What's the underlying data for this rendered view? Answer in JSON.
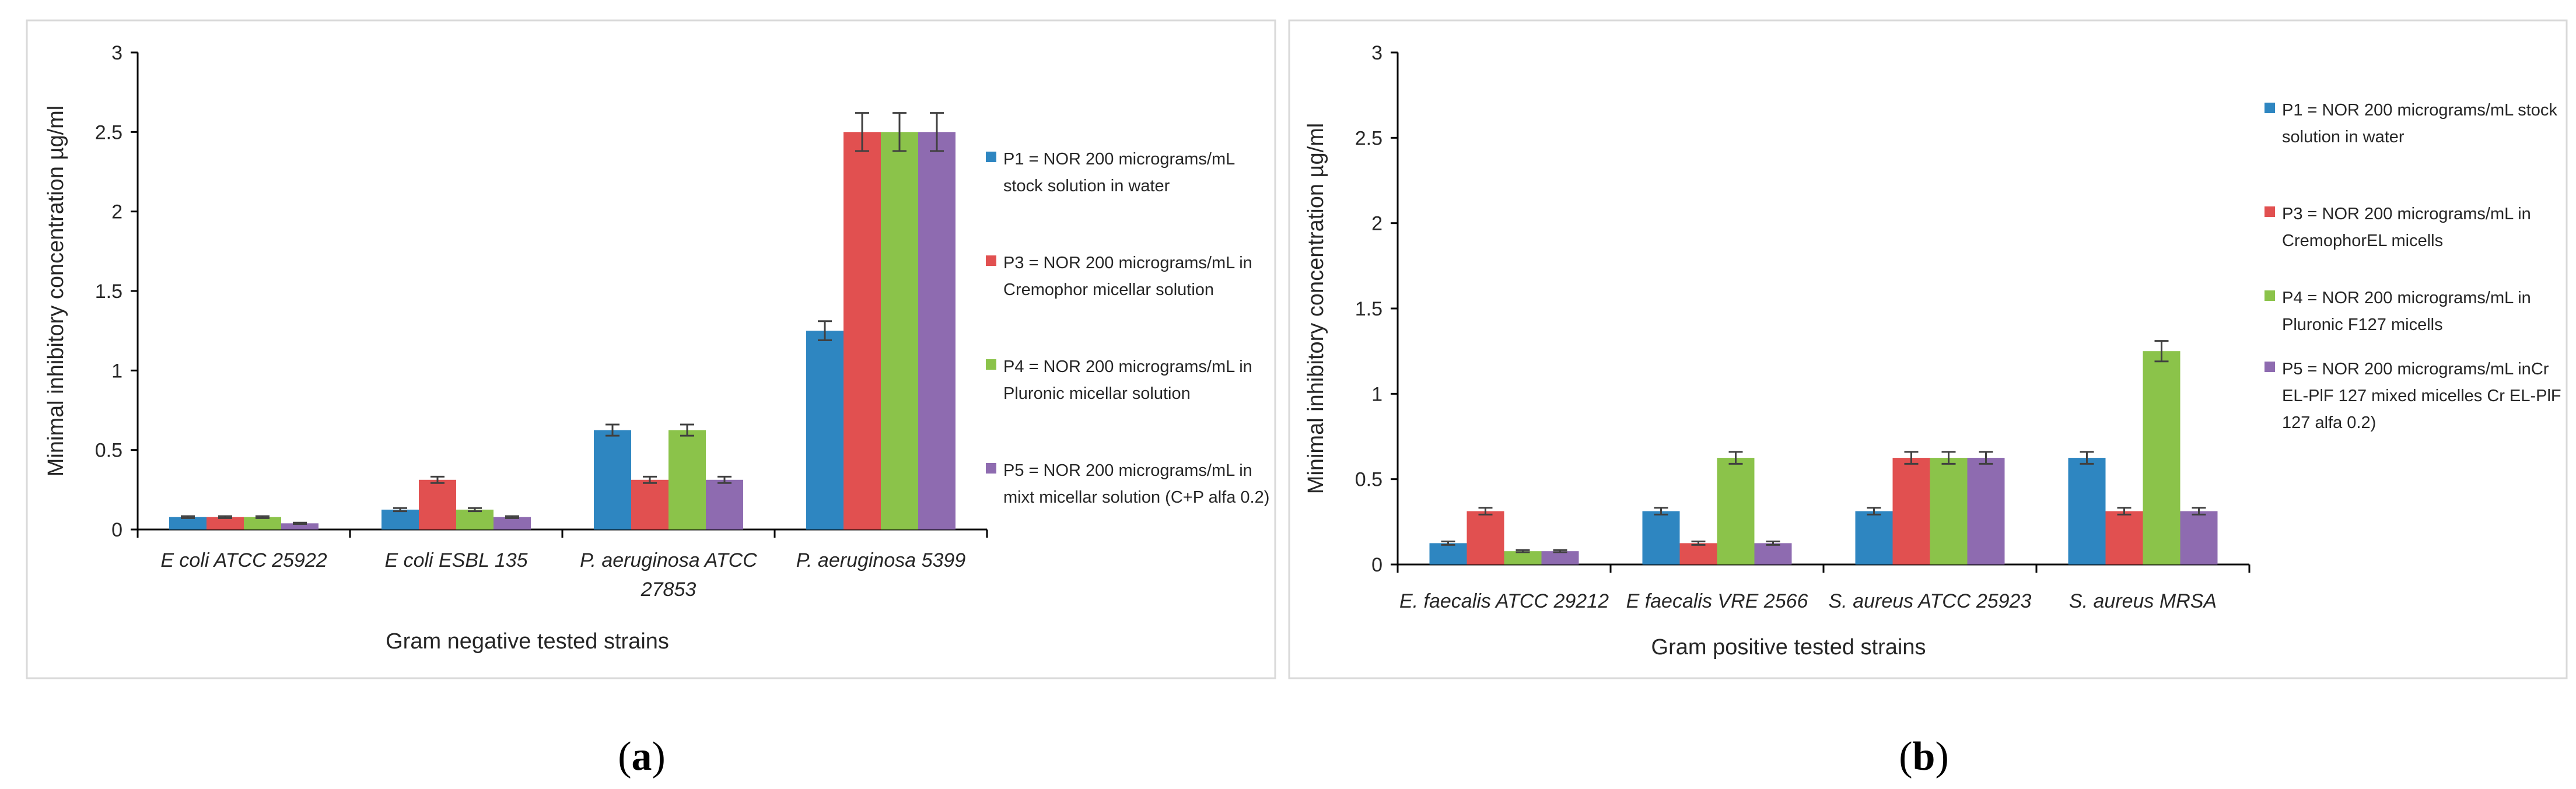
{
  "chart_data": [
    {
      "type": "bar",
      "panel_label": "a",
      "xlabel": "Gram negative tested strains",
      "ylabel": "Minimal inhibitory concentration µg/ml",
      "ylim": [
        0,
        3
      ],
      "yticks": [
        "0",
        "0.5",
        "1",
        "1.5",
        "2",
        "2.5",
        "3"
      ],
      "categories": [
        [
          "E coli ATCC 25922"
        ],
        [
          "E coli ESBL 135"
        ],
        [
          "P. aeruginosa ATCC",
          "27853"
        ],
        [
          "P. aeruginosa 5399"
        ]
      ],
      "series": [
        {
          "name": "P1",
          "legend_lines": [
            "P1 = NOR 200 micrograms/mL",
            "stock solution in water"
          ],
          "color": "#2E86C1",
          "values": [
            0.078,
            0.125,
            0.625,
            1.25
          ],
          "errors": [
            0.006,
            0.01,
            0.035,
            0.06
          ]
        },
        {
          "name": "P3",
          "legend_lines": [
            "P3 = NOR 200 micrograms/mL in",
            "Cremophor micellar solution"
          ],
          "color": "#E15050",
          "values": [
            0.078,
            0.3125,
            0.3125,
            2.5
          ],
          "errors": [
            0.006,
            0.02,
            0.02,
            0.12
          ]
        },
        {
          "name": "P4",
          "legend_lines": [
            "P4 = NOR 200 micrograms/mL in",
            "Pluronic micellar solution"
          ],
          "color": "#8BC34A",
          "values": [
            0.078,
            0.125,
            0.625,
            2.5
          ],
          "errors": [
            0.006,
            0.01,
            0.035,
            0.12
          ]
        },
        {
          "name": "P5",
          "legend_lines": [
            "P5 = NOR 200 micrograms/mL in",
            "mixt micellar solution (C+P alfa 0.2)"
          ],
          "color": "#8E6BB0",
          "values": [
            0.039,
            0.078,
            0.3125,
            2.5
          ],
          "errors": [
            0.004,
            0.006,
            0.02,
            0.12
          ]
        }
      ]
    },
    {
      "type": "bar",
      "panel_label": "b",
      "xlabel": "Gram positive tested strains",
      "ylabel": "Minimal inhibitory concentration µg/ml",
      "ylim": [
        0,
        3
      ],
      "yticks": [
        "0",
        "0.5",
        "1",
        "1.5",
        "2",
        "2.5",
        "3"
      ],
      "categories": [
        [
          "E. faecalis ATCC 29212"
        ],
        [
          "E faecalis VRE 2566"
        ],
        [
          "S. aureus ATCC 25923"
        ],
        [
          "S. aureus MRSA"
        ]
      ],
      "series": [
        {
          "name": "P1",
          "legend_lines": [
            "P1 = NOR 200 micrograms/mL stock",
            "solution in water"
          ],
          "color": "#2E86C1",
          "values": [
            0.125,
            0.3125,
            0.3125,
            0.625
          ],
          "errors": [
            0.01,
            0.02,
            0.02,
            0.035
          ]
        },
        {
          "name": "P3",
          "legend_lines": [
            "P3 = NOR 200 micrograms/mL in",
            "CremophorEL micells"
          ],
          "color": "#E15050",
          "values": [
            0.3125,
            0.125,
            0.625,
            0.3125
          ],
          "errors": [
            0.02,
            0.01,
            0.035,
            0.02
          ]
        },
        {
          "name": "P4",
          "legend_lines": [
            "P4 = NOR 200 micrograms/mL in",
            "Pluronic F127 micells"
          ],
          "color": "#8BC34A",
          "values": [
            0.078,
            0.625,
            0.625,
            1.25
          ],
          "errors": [
            0.006,
            0.035,
            0.035,
            0.06
          ]
        },
        {
          "name": "P5",
          "legend_lines": [
            "P5 = NOR 200 micrograms/mL inCr",
            "EL-PlF 127 mixed micelles Cr EL-PlF",
            "127 alfa 0.2)"
          ],
          "color": "#8E6BB0",
          "values": [
            0.078,
            0.125,
            0.625,
            0.3125
          ],
          "errors": [
            0.006,
            0.01,
            0.035,
            0.02
          ]
        }
      ]
    }
  ]
}
